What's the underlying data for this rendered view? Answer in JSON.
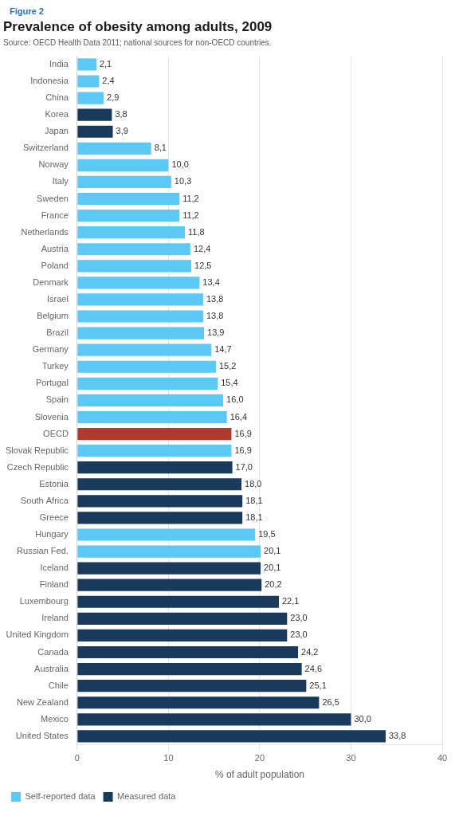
{
  "chart_data": {
    "type": "bar",
    "orientation": "horizontal",
    "title": "Prevalence of obesity among adults, 2009",
    "subtitle": "Source: OECD Health Data 2011; national sources for non-OECD countries.",
    "annotations": [
      "Figure 2"
    ],
    "xlabel": "% of adult population",
    "categories": [
      "India",
      "Indonesia",
      "China",
      "Korea",
      "Japan",
      "Switzerland",
      "Norway",
      "Italy",
      "Sweden",
      "France",
      "Netherlands",
      "Austria",
      "Poland",
      "Denmark",
      "Israel",
      "Belgium",
      "Brazil",
      "Germany",
      "Turkey",
      "Portugal",
      "Spain",
      "Slovenia",
      "OECD",
      "Slovak Republic",
      "Czech Republic",
      "Estonia",
      "South Africa",
      "Greece",
      "Hungary",
      "Russian Fed.",
      "Iceland",
      "Finland",
      "Luxembourg",
      "Ireland",
      "United Kingdom",
      "Canada",
      "Australia",
      "Chile",
      "New Zealand",
      "Mexico",
      "United States"
    ],
    "series": [
      {
        "name": "Self-reported data",
        "color": "#5BC8F5",
        "values": [
          2.1,
          2.4,
          2.9,
          null,
          null,
          8.1,
          10.0,
          10.3,
          11.2,
          11.2,
          11.8,
          12.4,
          12.5,
          13.4,
          13.8,
          13.8,
          13.9,
          14.7,
          15.2,
          15.4,
          16.0,
          16.4,
          null,
          16.9,
          null,
          null,
          null,
          null,
          19.5,
          20.1,
          null,
          null,
          null,
          null,
          null,
          null,
          null,
          null,
          null,
          null,
          null
        ],
        "value_labels": [
          "2,1",
          "2,4",
          "2,9",
          null,
          null,
          "8,1",
          "10,0",
          "10,3",
          "11,2",
          "11,2",
          "11,8",
          "12,4",
          "12,5",
          "13,4",
          "13,8",
          "13,8",
          "13,9",
          "14,7",
          "15,2",
          "15,4",
          "16,0",
          "16,4",
          null,
          "16,9",
          null,
          null,
          null,
          null,
          "19,5",
          "20,1",
          null,
          null,
          null,
          null,
          null,
          null,
          null,
          null,
          null,
          null,
          null
        ]
      },
      {
        "name": "Measured data",
        "color": "#1A3A5C",
        "values": [
          null,
          null,
          null,
          3.8,
          3.9,
          null,
          null,
          null,
          null,
          null,
          null,
          null,
          null,
          null,
          null,
          null,
          null,
          null,
          null,
          null,
          null,
          null,
          null,
          null,
          17.0,
          18.0,
          18.1,
          18.1,
          null,
          null,
          20.1,
          20.2,
          22.1,
          23.0,
          23.0,
          24.2,
          24.6,
          25.1,
          26.5,
          30.0,
          33.8
        ],
        "value_labels": [
          null,
          null,
          null,
          "3,8",
          "3,9",
          null,
          null,
          null,
          null,
          null,
          null,
          null,
          null,
          null,
          null,
          null,
          null,
          null,
          null,
          null,
          null,
          null,
          null,
          null,
          "17,0",
          "18,0",
          "18,1",
          "18,1",
          null,
          null,
          "20,1",
          "20,2",
          "22,1",
          "23,0",
          "23,0",
          "24,2",
          "24,6",
          "25,1",
          "26,5",
          "30,0",
          "33,8"
        ]
      },
      {
        "color": "#B03A2E",
        "values": [
          null,
          null,
          null,
          null,
          null,
          null,
          null,
          null,
          null,
          null,
          null,
          null,
          null,
          null,
          null,
          null,
          null,
          null,
          null,
          null,
          null,
          null,
          16.9,
          null,
          null,
          null,
          null,
          null,
          null,
          null,
          null,
          null,
          null,
          null,
          null,
          null,
          null,
          null,
          null,
          null,
          null
        ],
        "value_labels": [
          null,
          null,
          null,
          null,
          null,
          null,
          null,
          null,
          null,
          null,
          null,
          null,
          null,
          null,
          null,
          null,
          null,
          null,
          null,
          null,
          null,
          null,
          "16,9",
          null,
          null,
          null,
          null,
          null,
          null,
          null,
          null,
          null,
          null,
          null,
          null,
          null,
          null,
          null,
          null,
          null,
          null
        ]
      }
    ],
    "xlim": [
      0,
      40
    ],
    "xticks": [
      0,
      10,
      20,
      30,
      40
    ],
    "grid": true,
    "legend": "lower left",
    "data_labels": true
  }
}
